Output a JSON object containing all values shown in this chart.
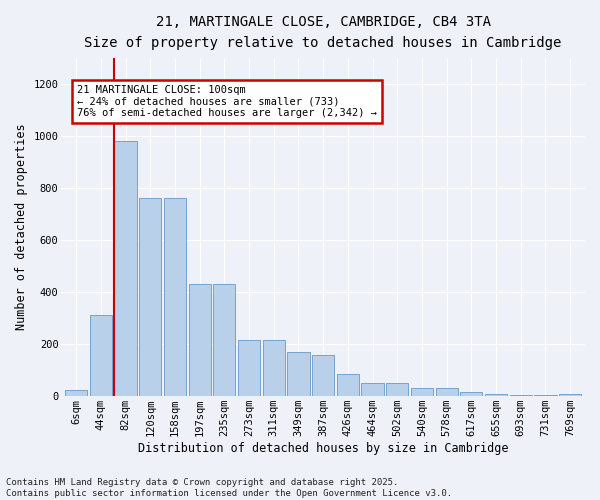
{
  "title": "21, MARTINGALE CLOSE, CAMBRIDGE, CB4 3TA",
  "subtitle": "Size of property relative to detached houses in Cambridge",
  "xlabel": "Distribution of detached houses by size in Cambridge",
  "ylabel": "Number of detached properties",
  "categories": [
    "6sqm",
    "44sqm",
    "82sqm",
    "120sqm",
    "158sqm",
    "197sqm",
    "235sqm",
    "273sqm",
    "311sqm",
    "349sqm",
    "387sqm",
    "426sqm",
    "464sqm",
    "502sqm",
    "540sqm",
    "578sqm",
    "617sqm",
    "655sqm",
    "693sqm",
    "731sqm",
    "769sqm"
  ],
  "values": [
    25,
    310,
    980,
    760,
    760,
    430,
    430,
    215,
    215,
    170,
    160,
    85,
    50,
    50,
    30,
    30,
    15,
    10,
    5,
    5,
    10
  ],
  "bar_color": "#b8d0ea",
  "bar_edge_color": "#6699cc",
  "vline_color": "#cc0000",
  "annotation_text": "21 MARTINGALE CLOSE: 100sqm\n← 24% of detached houses are smaller (733)\n76% of semi-detached houses are larger (2,342) →",
  "annotation_box_color": "#cc0000",
  "ylim": [
    0,
    1300
  ],
  "yticks": [
    0,
    200,
    400,
    600,
    800,
    1000,
    1200
  ],
  "background_color": "#eef2f8",
  "footer_text": "Contains HM Land Registry data © Crown copyright and database right 2025.\nContains public sector information licensed under the Open Government Licence v3.0.",
  "title_fontsize": 10,
  "subtitle_fontsize": 9,
  "xlabel_fontsize": 8.5,
  "ylabel_fontsize": 8.5,
  "tick_fontsize": 7.5,
  "footer_fontsize": 6.5
}
